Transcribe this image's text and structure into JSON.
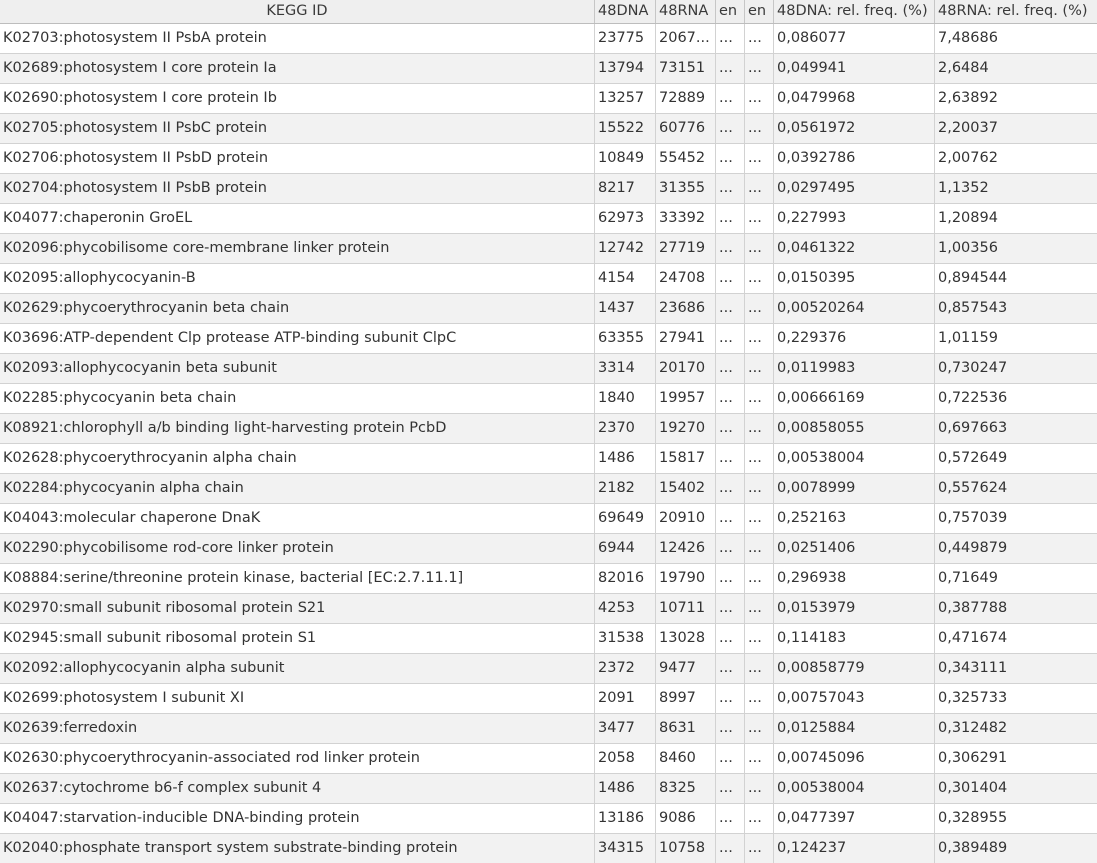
{
  "table": {
    "columns": [
      "KEGG ID",
      "48DNA",
      "48RNA",
      "en",
      "en",
      "48DNA: rel. freq. (%)",
      "48RNA: rel. freq. (%)"
    ],
    "rows": [
      [
        "K02703:photosystem II PsbA protein",
        "23775",
        "2067...",
        "...",
        "...",
        "0,086077",
        "7,48686"
      ],
      [
        "K02689:photosystem I core protein Ia",
        "13794",
        "73151",
        "...",
        "...",
        "0,049941",
        "2,6484"
      ],
      [
        "K02690:photosystem I core protein Ib",
        "13257",
        "72889",
        "...",
        "...",
        "0,0479968",
        "2,63892"
      ],
      [
        "K02705:photosystem II PsbC protein",
        "15522",
        "60776",
        "...",
        "...",
        "0,0561972",
        "2,20037"
      ],
      [
        "K02706:photosystem II PsbD protein",
        "10849",
        "55452",
        "...",
        "...",
        "0,0392786",
        "2,00762"
      ],
      [
        "K02704:photosystem II PsbB protein",
        "8217",
        "31355",
        "...",
        "...",
        "0,0297495",
        "1,1352"
      ],
      [
        "K04077:chaperonin GroEL",
        "62973",
        "33392",
        "...",
        "...",
        "0,227993",
        "1,20894"
      ],
      [
        "K02096:phycobilisome core-membrane linker protein",
        "12742",
        "27719",
        "...",
        "...",
        "0,0461322",
        "1,00356"
      ],
      [
        "K02095:allophycocyanin-B",
        "4154",
        "24708",
        "...",
        "...",
        "0,0150395",
        "0,894544"
      ],
      [
        "K02629:phycoerythrocyanin beta chain",
        "1437",
        "23686",
        "...",
        "...",
        "0,00520264",
        "0,857543"
      ],
      [
        "K03696:ATP-dependent Clp protease ATP-binding subunit ClpC",
        "63355",
        "27941",
        "...",
        "...",
        "0,229376",
        "1,01159"
      ],
      [
        "K02093:allophycocyanin beta subunit",
        "3314",
        "20170",
        "...",
        "...",
        "0,0119983",
        "0,730247"
      ],
      [
        "K02285:phycocyanin beta chain",
        "1840",
        "19957",
        "...",
        "...",
        "0,00666169",
        "0,722536"
      ],
      [
        "K08921:chlorophyll a/b binding light-harvesting protein PcbD",
        "2370",
        "19270",
        "...",
        "...",
        "0,00858055",
        "0,697663"
      ],
      [
        "K02628:phycoerythrocyanin alpha chain",
        "1486",
        "15817",
        "...",
        "...",
        "0,00538004",
        "0,572649"
      ],
      [
        "K02284:phycocyanin alpha chain",
        "2182",
        "15402",
        "...",
        "...",
        "0,0078999",
        "0,557624"
      ],
      [
        "K04043:molecular chaperone DnaK",
        "69649",
        "20910",
        "...",
        "...",
        "0,252163",
        "0,757039"
      ],
      [
        "K02290:phycobilisome rod-core linker protein",
        "6944",
        "12426",
        "...",
        "...",
        "0,0251406",
        "0,449879"
      ],
      [
        "K08884:serine/threonine protein kinase, bacterial [EC:2.7.11.1]",
        "82016",
        "19790",
        "...",
        "...",
        "0,296938",
        "0,71649"
      ],
      [
        "K02970:small subunit ribosomal protein S21",
        "4253",
        "10711",
        "...",
        "...",
        "0,0153979",
        "0,387788"
      ],
      [
        "K02945:small subunit ribosomal protein S1",
        "31538",
        "13028",
        "...",
        "...",
        "0,114183",
        "0,471674"
      ],
      [
        "K02092:allophycocyanin alpha subunit",
        "2372",
        "9477",
        "...",
        "...",
        "0,00858779",
        "0,343111"
      ],
      [
        "K02699:photosystem I subunit XI",
        "2091",
        "8997",
        "...",
        "...",
        "0,00757043",
        "0,325733"
      ],
      [
        "K02639:ferredoxin",
        "3477",
        "8631",
        "...",
        "...",
        "0,0125884",
        "0,312482"
      ],
      [
        "K02630:phycoerythrocyanin-associated rod linker protein",
        "2058",
        "8460",
        "...",
        "...",
        "0,00745096",
        "0,306291"
      ],
      [
        "K02637:cytochrome b6-f complex subunit 4",
        "1486",
        "8325",
        "...",
        "...",
        "0,00538004",
        "0,301404"
      ],
      [
        "K04047:starvation-inducible DNA-binding protein",
        "13186",
        "9086",
        "...",
        "...",
        "0,0477397",
        "0,328955"
      ],
      [
        "K02040:phosphate transport system substrate-binding protein",
        "34315",
        "10758",
        "...",
        "...",
        "0,124237",
        "0,389489"
      ]
    ]
  }
}
